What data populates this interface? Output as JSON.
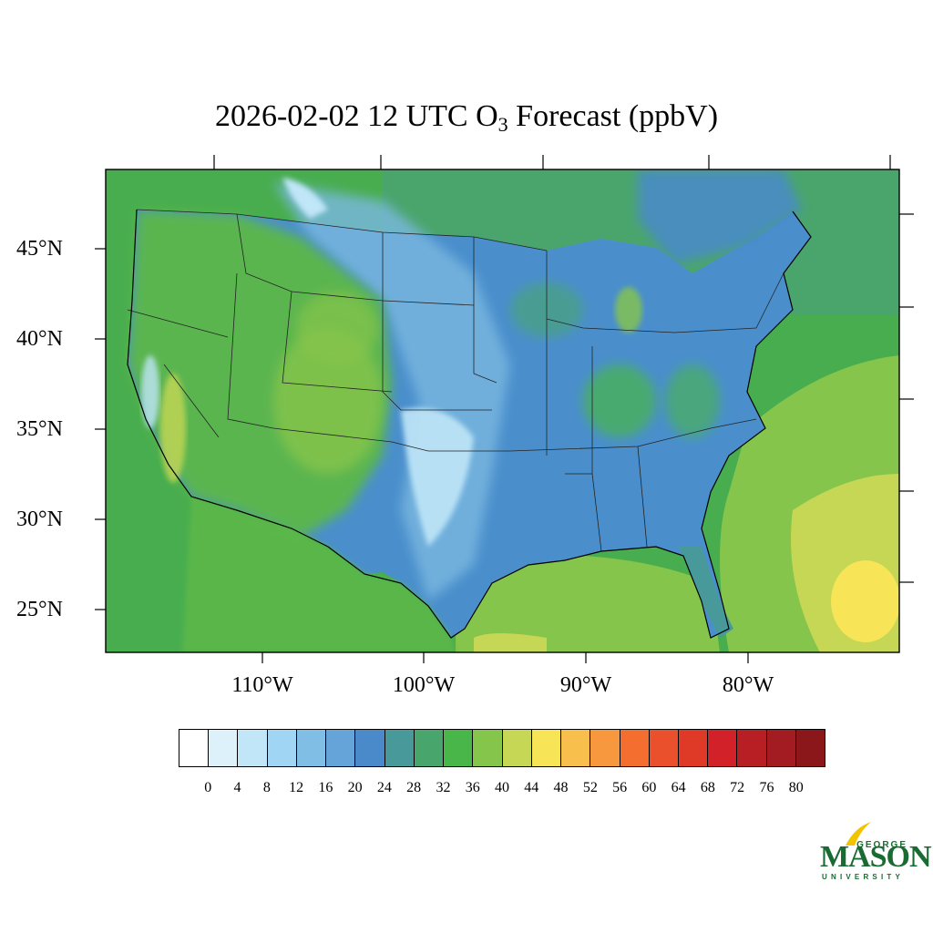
{
  "title": {
    "main": "2026-02-02 12 UTC O",
    "subscript": "3",
    "suffix": " Forecast (ppbV)"
  },
  "map": {
    "type": "contour-fill",
    "variable": "O3",
    "units": "ppbV",
    "lat_labels": [
      "45°N",
      "40°N",
      "35°N",
      "30°N",
      "25°N"
    ],
    "lon_labels": [
      "110°W",
      "100°W",
      "90°W",
      "80°W"
    ],
    "colors": {
      "ocean_west": "#48ad4f",
      "ocean_north": "#4aa56c",
      "ocean_gulf": "#86c54b",
      "atlantic_warm": "#c5d755",
      "atlantic_hot": "#f7e557",
      "land_low": "#4a8fcc",
      "land_mid": "#7ab8e0",
      "land_high_west": "#5cb848"
    }
  },
  "colorbar": {
    "colors": [
      "#ffffff",
      "#ddf1fb",
      "#c0e6f8",
      "#a0d5f3",
      "#80bee6",
      "#65a4d9",
      "#4a8acb",
      "#48999a",
      "#48a66d",
      "#49b64a",
      "#86c54b",
      "#c5d755",
      "#f7e557",
      "#f8bf4d",
      "#f7983f",
      "#f46f2f",
      "#e9502b",
      "#df3a27",
      "#d22128",
      "#b81f25",
      "#a31c21",
      "#8c171a"
    ],
    "ticks": [
      "0",
      "4",
      "8",
      "12",
      "16",
      "20",
      "24",
      "28",
      "32",
      "36",
      "40",
      "44",
      "48",
      "52",
      "56",
      "60",
      "64",
      "68",
      "72",
      "76",
      "80"
    ]
  },
  "logo": {
    "line1": "GEORGE",
    "line2": "MASON",
    "line3": "UNIVERSITY"
  }
}
